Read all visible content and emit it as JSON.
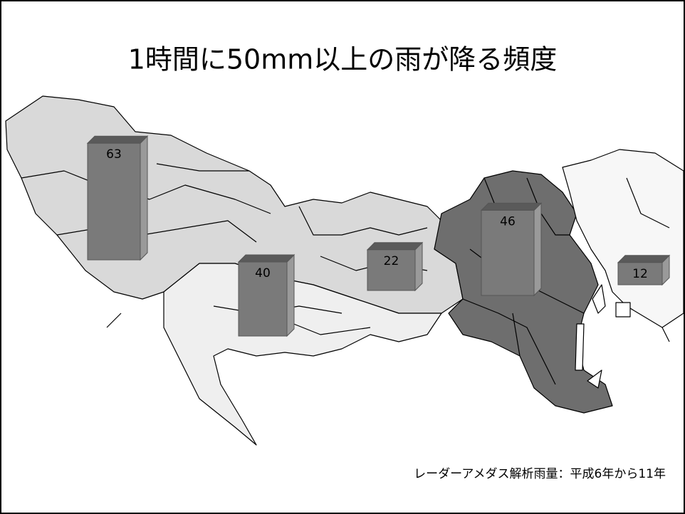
{
  "chart_data": {
    "type": "bar",
    "title": "1時間に50mm以上の雨が降る頻度",
    "note": "レーダーアメダス解析雨量：平成6年から11年",
    "values": [
      63,
      40,
      22,
      46,
      12
    ],
    "color": "#7a7a7a"
  }
}
